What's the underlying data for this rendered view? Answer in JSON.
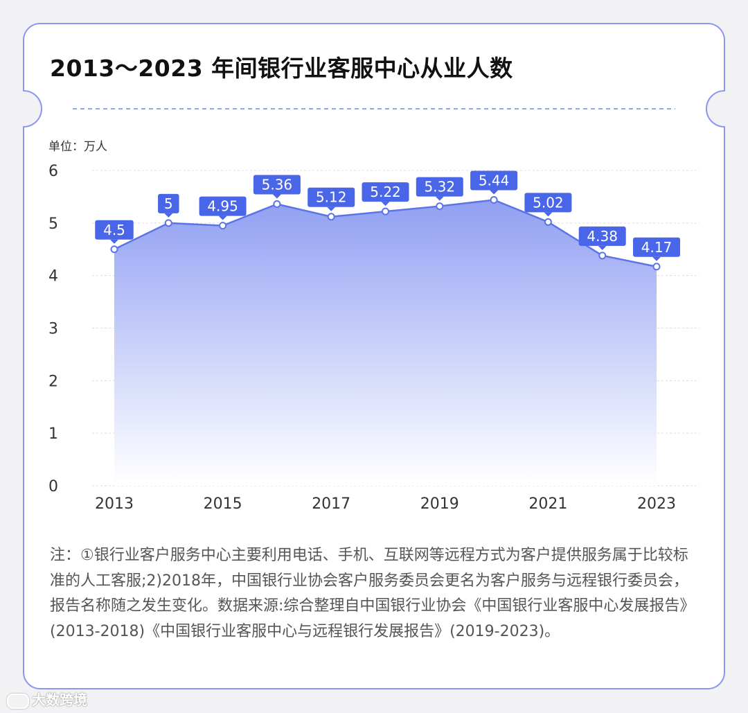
{
  "title": "2013～2023 年间银行业客服中心从业人数",
  "unit_label": "单位：万人",
  "note": "注：①银行业客户服务中心主要利用电话、手机、互联网等远程方式为客户提供服务属于比较标准的人工客服;2)2018年，中国银行业协会客户服务委员会更名为客户服务与远程银行委员会，报告名称随之发生变化。数据来源:综合整理自中国银行业协会《中国银行业客服中心发展报告》(2013-2018)《中国银行业客服中心与远程银行发展报告》(2019-2023)。",
  "watermark": "大数跨境",
  "colors": {
    "line": "#5b74e6",
    "label_bg": "#4a66e8",
    "border": "#8a96f0"
  },
  "chart_data": {
    "type": "area",
    "x": [
      2013,
      2014,
      2015,
      2016,
      2017,
      2018,
      2019,
      2020,
      2021,
      2022,
      2023
    ],
    "values": [
      4.5,
      5,
      4.95,
      5.36,
      5.12,
      5.22,
      5.32,
      5.44,
      5.02,
      4.38,
      4.17
    ],
    "value_labels": [
      "4.5",
      "5",
      "4.95",
      "5.36",
      "5.12",
      "5.22",
      "5.32",
      "5.44",
      "5.02",
      "4.38",
      "4.17"
    ],
    "x_tick_labels": [
      "2013",
      "2015",
      "2017",
      "2019",
      "2021",
      "2023"
    ],
    "y_tick_labels": [
      "0",
      "1",
      "2",
      "3",
      "4",
      "5",
      "6"
    ],
    "ylim": [
      0,
      6
    ],
    "grid": true
  }
}
